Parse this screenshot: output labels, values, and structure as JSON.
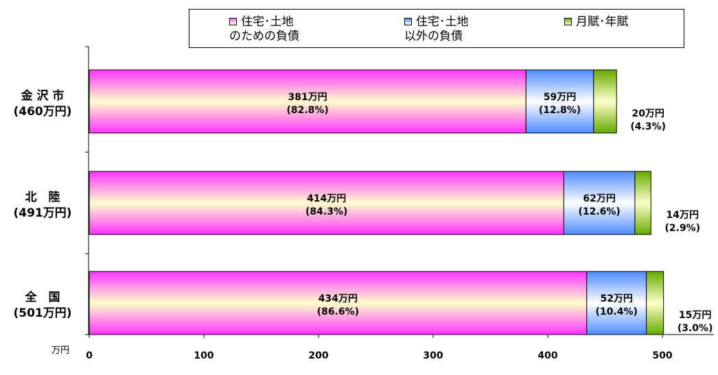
{
  "chart_data": {
    "type": "bar",
    "orientation": "horizontal",
    "stacked": true,
    "unit": "万円",
    "xlim": [
      0,
      550
    ],
    "x_ticks": [
      0,
      100,
      200,
      300,
      400,
      500
    ],
    "categories": [
      {
        "name": "金 沢 市",
        "total": "(460万円)"
      },
      {
        "name": "北　陸",
        "total": "(491万円)"
      },
      {
        "name": "全　国",
        "total": "(501万円)"
      }
    ],
    "series": [
      {
        "name": "住宅･土地\nのための負債",
        "values": [
          381,
          414,
          434
        ],
        "value_labels": [
          "381万円",
          "414万円",
          "434万円"
        ],
        "share_labels": [
          "(82.8%)",
          "(84.3%)",
          "(86.6%)"
        ],
        "colors": [
          "#ff33ff",
          "#ffffcc"
        ]
      },
      {
        "name": "住宅･土地\n以外の負債",
        "values": [
          59,
          62,
          52
        ],
        "value_labels": [
          "59万円",
          "62万円",
          "52万円"
        ],
        "share_labels": [
          "(12.8%)",
          "(12.6%)",
          "(10.4%)"
        ],
        "colors": [
          "#4d8bff",
          "#ffffff"
        ]
      },
      {
        "name": "月賦･年賦",
        "values": [
          20,
          14,
          15
        ],
        "value_labels": [
          "20万円",
          "14万円",
          "15万円"
        ],
        "share_labels": [
          "(4.3%)",
          "(2.9%)",
          "(3.0%)"
        ],
        "colors": [
          "#66aa00",
          "#ffffcc"
        ]
      }
    ],
    "legend": "top"
  }
}
